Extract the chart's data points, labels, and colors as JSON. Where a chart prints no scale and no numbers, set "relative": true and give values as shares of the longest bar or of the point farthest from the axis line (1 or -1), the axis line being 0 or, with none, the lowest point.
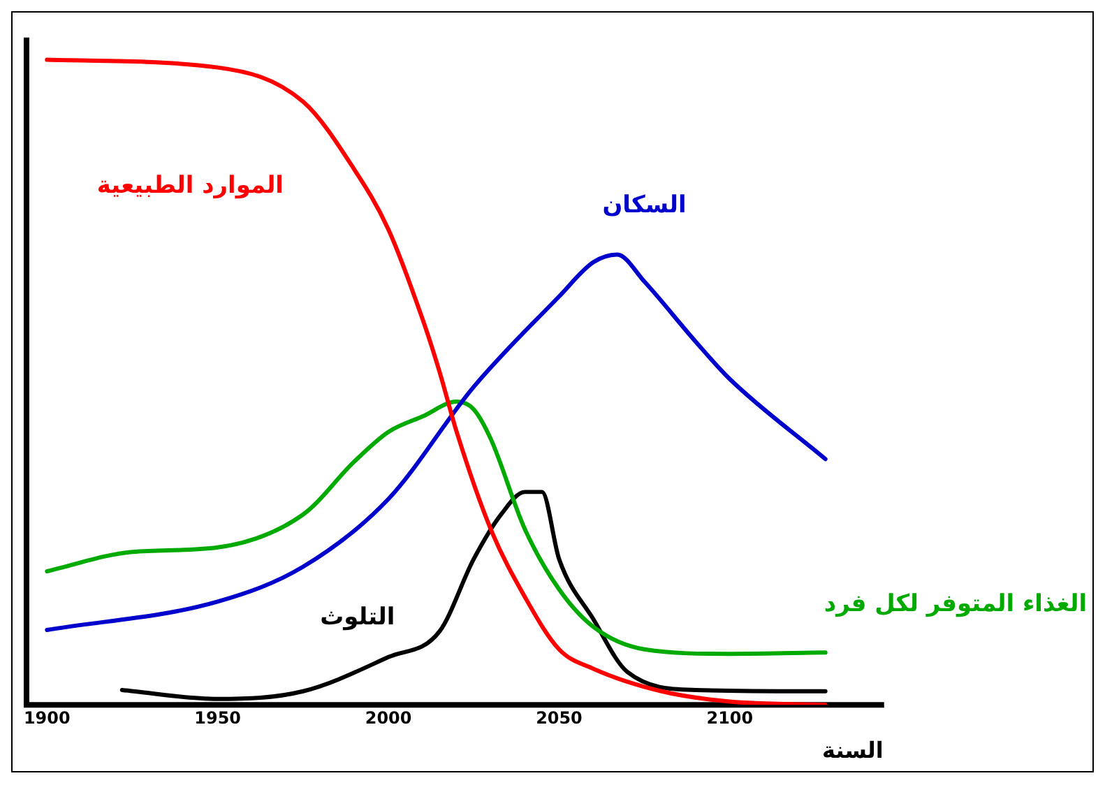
{
  "chart_data": {
    "type": "line",
    "relative": true,
    "xlabel": "السنة",
    "xlim": [
      1894,
      2145
    ],
    "xticks": [
      1900,
      1950,
      2000,
      2050,
      2100
    ],
    "grid": false,
    "legend": false,
    "marker": "none",
    "line_style": "solid",
    "series": [
      {
        "name": "الموارد الطبيعية",
        "color": "#ff0000",
        "x": [
          1900,
          1950,
          1975,
          1990,
          2000,
          2010,
          2015,
          2020,
          2030,
          2040,
          2050,
          2060,
          2080,
          2100,
          2128
        ],
        "values": [
          1.0,
          0.988,
          0.935,
          0.83,
          0.737,
          0.598,
          0.516,
          0.423,
          0.272,
          0.167,
          0.086,
          0.056,
          0.021,
          0.005,
          0.0
        ]
      },
      {
        "name": "السكان",
        "color": "#0000cc",
        "x": [
          1900,
          1950,
          1975,
          2000,
          2025,
          2050,
          2060,
          2067,
          2075,
          2090,
          2100,
          2128
        ],
        "values": [
          0.116,
          0.16,
          0.214,
          0.319,
          0.493,
          0.633,
          0.686,
          0.698,
          0.656,
          0.563,
          0.505,
          0.381
        ]
      },
      {
        "name": "الغذاء المتوفر لكل فرد",
        "color": "#00aa00",
        "x": [
          1900,
          1925,
          1950,
          1975,
          1990,
          2000,
          2010,
          2020,
          2025,
          2030,
          2040,
          2050,
          2060,
          2075,
          2100,
          2128
        ],
        "values": [
          0.207,
          0.237,
          0.244,
          0.295,
          0.377,
          0.423,
          0.447,
          0.47,
          0.458,
          0.412,
          0.272,
          0.179,
          0.121,
          0.086,
          0.079,
          0.081
        ]
      },
      {
        "name": "التلوث",
        "color": "#000000",
        "x": [
          1922,
          1950,
          1975,
          2000,
          2015,
          2025,
          2033,
          2040,
          2045,
          2050,
          2060,
          2070,
          2090,
          2128
        ],
        "values": [
          0.023,
          0.009,
          0.021,
          0.074,
          0.114,
          0.226,
          0.295,
          0.33,
          0.33,
          0.226,
          0.133,
          0.051,
          0.023,
          0.021
        ]
      }
    ]
  }
}
